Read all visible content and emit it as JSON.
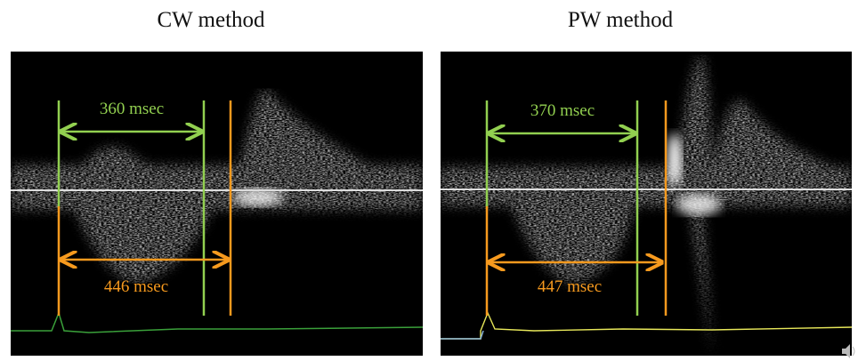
{
  "panels": [
    {
      "title": "CW method",
      "green_label": "360 msec",
      "orange_label": "446 msec"
    },
    {
      "title": "PW method",
      "green_label": "370 msec",
      "orange_label": "447 msec"
    }
  ]
}
